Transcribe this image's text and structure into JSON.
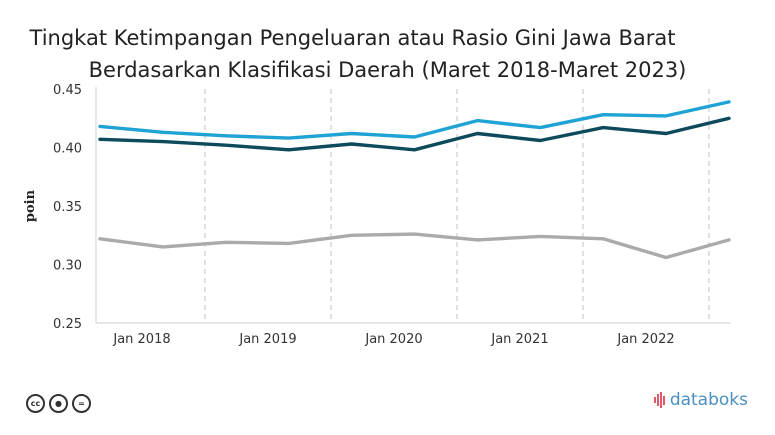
{
  "title_line1": "Tingkat Ketimpangan Pengeluaran atau Rasio Gini Jawa Barat",
  "title_line2": "Berdasarkan Klasifikasi Daerah (Maret 2018-Maret 2023)",
  "brand": "databoks",
  "license_icons": [
    "cc-icon",
    "by-icon",
    "nd-icon"
  ],
  "chart_data": {
    "type": "line",
    "title": "Tingkat Ketimpangan Pengeluaran atau Rasio Gini Jawa Barat Berdasarkan Klasifikasi Daerah (Maret 2018-Maret 2023)",
    "ylabel": "poin",
    "xlabel": "",
    "ylim": [
      0.25,
      0.45
    ],
    "yticks": [
      "0.45",
      "0.40",
      "0.35",
      "0.30",
      "0.25"
    ],
    "xtick_labels": [
      "Jan 2018",
      "Jan 2019",
      "Jan 2020",
      "Jan 2021",
      "Jan 2022"
    ],
    "x": [
      "Mar 2018",
      "Sep 2018",
      "Mar 2019",
      "Sep 2019",
      "Mar 2020",
      "Sep 2020",
      "Mar 2021",
      "Sep 2021",
      "Mar 2022",
      "Sep 2022",
      "Mar 2023"
    ],
    "grid": "vertical dashed",
    "legend": "none",
    "series": [
      {
        "color": "#1fa3d4",
        "values": [
          0.418,
          0.413,
          0.41,
          0.408,
          0.412,
          0.409,
          0.423,
          0.417,
          0.428,
          0.427,
          0.439
        ]
      },
      {
        "color": "#0d4a5c",
        "values": [
          0.407,
          0.405,
          0.402,
          0.398,
          0.403,
          0.398,
          0.412,
          0.406,
          0.417,
          0.412,
          0.425
        ]
      },
      {
        "color": "#aaaaaa",
        "values": [
          0.322,
          0.315,
          0.319,
          0.318,
          0.325,
          0.326,
          0.321,
          0.324,
          0.322,
          0.306,
          0.321
        ]
      }
    ]
  }
}
